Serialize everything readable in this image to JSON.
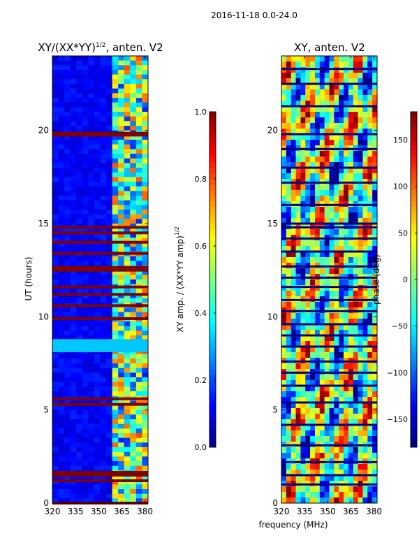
{
  "figure": {
    "suptitle": "2016-11-18 0.0-24.0",
    "xlabel": "frequency (MHz)"
  },
  "colormap": "jet",
  "chart_data": [
    {
      "type": "heatmap",
      "title_base": "XY/(XX*YY)",
      "title_exponent": "1/2",
      "title_suffix": ", anten. V2",
      "ylabel": "UT (hours)",
      "xlim": [
        320,
        382
      ],
      "ylim": [
        0,
        24
      ],
      "xticks": [
        320,
        335,
        350,
        365,
        380
      ],
      "yticks": [
        0,
        5,
        10,
        15,
        20
      ],
      "colorbar": {
        "label_base": "XY amp. / (XX*YY amp)",
        "label_exponent": "1/2",
        "range": [
          0.0,
          1.0
        ],
        "ticks": [
          0.0,
          0.2,
          0.4,
          0.6,
          0.8,
          1.0
        ],
        "tick_labels": [
          "0.0",
          "0.2",
          "0.4",
          "0.6",
          "0.8",
          "1.0"
        ]
      },
      "background_value": 0.12,
      "bright_band_freq": [
        360,
        382
      ],
      "saturated_rows_UT": [
        0.0,
        1.2,
        1.5,
        1.65,
        5.3,
        5.6,
        9.9,
        10.6,
        11.2,
        11.6,
        12.5,
        12.65,
        13.4,
        14.0,
        14.5,
        14.8,
        19.75,
        19.85
      ],
      "anomaly_band_UT": [
        8.1,
        8.8
      ]
    },
    {
      "type": "heatmap",
      "title": "XY, anten. V2",
      "xlim": [
        320,
        382
      ],
      "ylim": [
        0,
        24
      ],
      "xticks": [
        320,
        335,
        350,
        365,
        380
      ],
      "yticks": [
        0,
        5,
        10,
        15,
        20
      ],
      "colorbar": {
        "label": "phase (deg)",
        "range": [
          -180,
          180
        ],
        "ticks": [
          -150,
          -100,
          -50,
          0,
          50,
          100,
          150
        ],
        "tick_labels": [
          "−150",
          "−100",
          "−50",
          "0",
          "50",
          "100",
          "150"
        ]
      },
      "gap_rows_UT": [
        1.0,
        1.5,
        2.2,
        3.1,
        4.2,
        5.4,
        6.3,
        7.0,
        7.6,
        8.4,
        9.0,
        9.6,
        10.3,
        10.9,
        11.6,
        12.1,
        12.7,
        13.5,
        14.2,
        14.8,
        15.0,
        16.0,
        17.2,
        18.0,
        19.0,
        19.8,
        21.3,
        22.5,
        23.3
      ]
    }
  ]
}
